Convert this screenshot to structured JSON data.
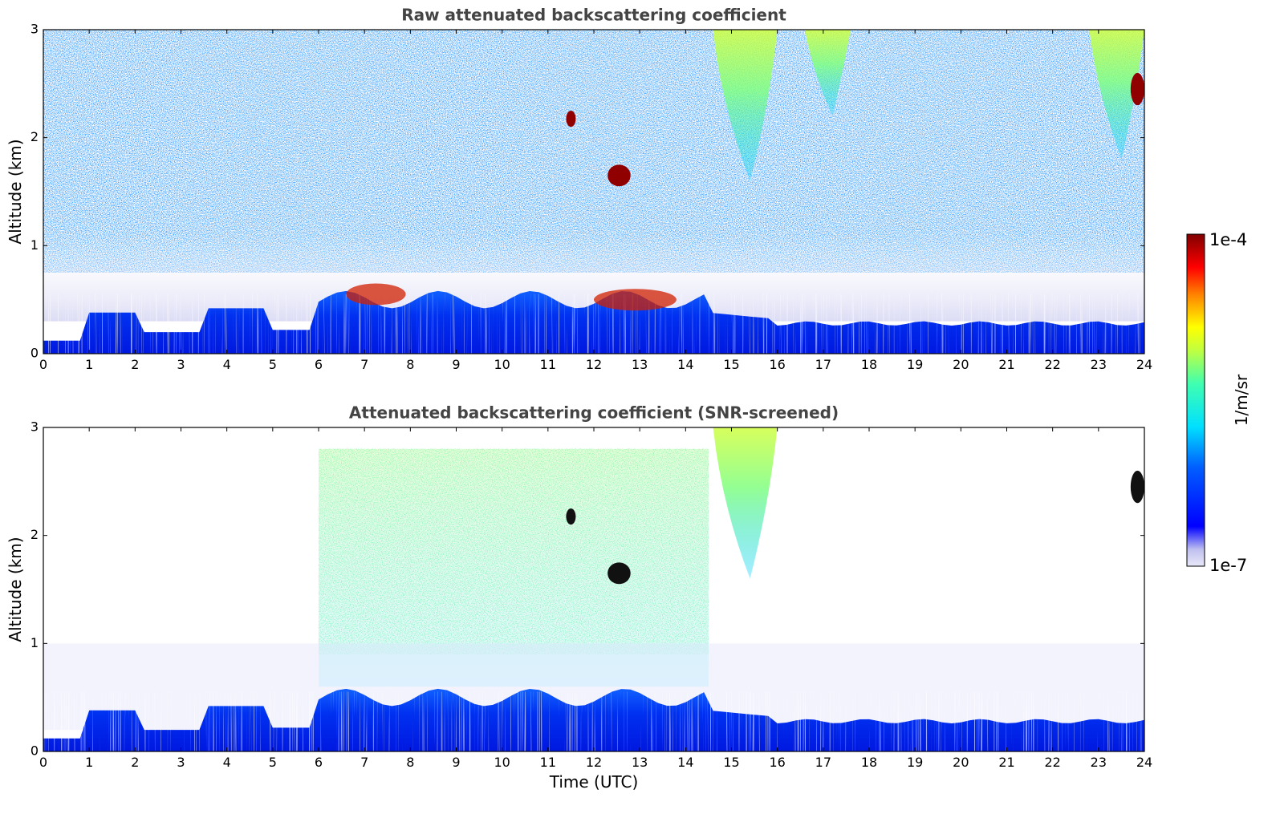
{
  "chart_data": [
    {
      "type": "heatmap",
      "title": "Raw attenuated backscattering coefficient",
      "xlabel": "",
      "ylabel": "Altitude (km)",
      "xlim": [
        0,
        24
      ],
      "ylim": [
        0,
        3
      ],
      "xticks": [
        "0",
        "1",
        "2",
        "3",
        "4",
        "5",
        "6",
        "7",
        "8",
        "9",
        "10",
        "11",
        "12",
        "13",
        "14",
        "15",
        "16",
        "17",
        "18",
        "19",
        "20",
        "21",
        "22",
        "23",
        "24"
      ],
      "yticks": [
        "0",
        "1",
        "2",
        "3"
      ],
      "features": [
        {
          "name": "boundary-layer",
          "x_range": [
            0,
            24
          ],
          "alt_range": [
            0,
            0.55
          ],
          "level": "low-mid"
        },
        {
          "name": "aerosol-top-1",
          "x_range": [
            6.6,
            7.9
          ],
          "alt_range": [
            0.45,
            0.65
          ],
          "level": "high"
        },
        {
          "name": "aerosol-top-2",
          "x_range": [
            12.0,
            13.8
          ],
          "alt_range": [
            0.4,
            0.6
          ],
          "level": "high"
        },
        {
          "name": "cloud-a",
          "x_range": [
            11.4,
            11.6
          ],
          "alt_range": [
            2.1,
            2.25
          ],
          "level": "max"
        },
        {
          "name": "cloud-b",
          "x_range": [
            12.3,
            12.8
          ],
          "alt_range": [
            1.55,
            1.75
          ],
          "level": "max"
        },
        {
          "name": "cirrus-1",
          "x_range": [
            14.6,
            16.0
          ],
          "alt_range": [
            1.6,
            3.0
          ],
          "level": "mid-high"
        },
        {
          "name": "cirrus-2",
          "x_range": [
            16.6,
            17.6
          ],
          "alt_range": [
            2.2,
            3.0
          ],
          "level": "mid-high"
        },
        {
          "name": "cirrus-3",
          "x_range": [
            22.8,
            24.0
          ],
          "alt_range": [
            1.8,
            3.0
          ],
          "level": "mid-high"
        },
        {
          "name": "cloud-c",
          "x_range": [
            23.7,
            24.0
          ],
          "alt_range": [
            2.3,
            2.6
          ],
          "level": "max"
        }
      ]
    },
    {
      "type": "heatmap",
      "title": "Attenuated backscattering coefficient (SNR-screened)",
      "xlabel": "Time (UTC)",
      "ylabel": "Altitude (km)",
      "xlim": [
        0,
        24
      ],
      "ylim": [
        0,
        3
      ],
      "xticks": [
        "0",
        "1",
        "2",
        "3",
        "4",
        "5",
        "6",
        "7",
        "8",
        "9",
        "10",
        "11",
        "12",
        "13",
        "14",
        "15",
        "16",
        "17",
        "18",
        "19",
        "20",
        "21",
        "22",
        "23",
        "24"
      ],
      "yticks": [
        "0",
        "1",
        "2",
        "3"
      ],
      "features": [
        {
          "name": "boundary-layer",
          "x_range": [
            0,
            24
          ],
          "alt_range": [
            0,
            0.6
          ],
          "level": "low"
        },
        {
          "name": "residual-aerosol",
          "x_range": [
            6,
            14.5
          ],
          "alt_range": [
            0.6,
            2.8
          ],
          "level": "mid"
        },
        {
          "name": "cloud-a",
          "x_range": [
            11.4,
            11.6
          ],
          "alt_range": [
            2.1,
            2.25
          ],
          "level": "max"
        },
        {
          "name": "cloud-b",
          "x_range": [
            12.3,
            12.8
          ],
          "alt_range": [
            1.55,
            1.75
          ],
          "level": "max"
        },
        {
          "name": "cirrus-1",
          "x_range": [
            14.6,
            16.0
          ],
          "alt_range": [
            1.6,
            3.0
          ],
          "level": "mid-high"
        },
        {
          "name": "cloud-c",
          "x_range": [
            23.7,
            24.0
          ],
          "alt_range": [
            2.3,
            2.6
          ],
          "level": "max"
        }
      ]
    }
  ],
  "colorbar": {
    "label": "1/m/sr",
    "max_label": "1e-4",
    "min_label": "1e-7",
    "scale": "log",
    "colormap": [
      "#e8e8f8",
      "#0000ff",
      "#00ffff",
      "#ffff00",
      "#ff0000",
      "#800000"
    ]
  }
}
